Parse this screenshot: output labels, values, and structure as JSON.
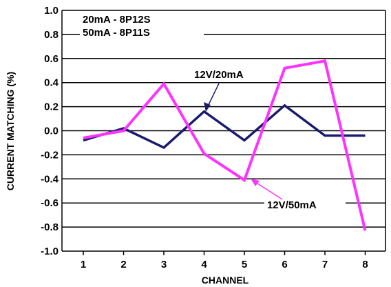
{
  "chart_data": {
    "type": "line",
    "categories": [
      "1",
      "2",
      "3",
      "4",
      "5",
      "6",
      "7",
      "8"
    ],
    "series": [
      {
        "name": "12V/20mA",
        "color": "#1a1a6e",
        "values": [
          -0.08,
          0.02,
          -0.14,
          0.16,
          -0.08,
          0.21,
          -0.04,
          -0.04
        ]
      },
      {
        "name": "12V/50mA",
        "color": "#ff33ff",
        "values": [
          -0.06,
          0.0,
          0.39,
          -0.19,
          -0.41,
          0.52,
          0.58,
          -0.83
        ]
      }
    ],
    "xlabel": "CHANNEL",
    "ylabel": "CURRENT MATCHING (%)",
    "ylim": [
      -1.0,
      1.0
    ],
    "yticks": [
      "1.0",
      "0.8",
      "0.6",
      "0.4",
      "0.2",
      "0.0",
      "-0.2",
      "-0.4",
      "-0.6",
      "-0.8",
      "-1.0"
    ],
    "grid": true,
    "annotations": {
      "note_line1": "20mA - 8P12S",
      "note_line2": "50mA - 8P11S",
      "label_20ma": "12V/20mA",
      "label_50ma": "12V/50mA"
    }
  }
}
